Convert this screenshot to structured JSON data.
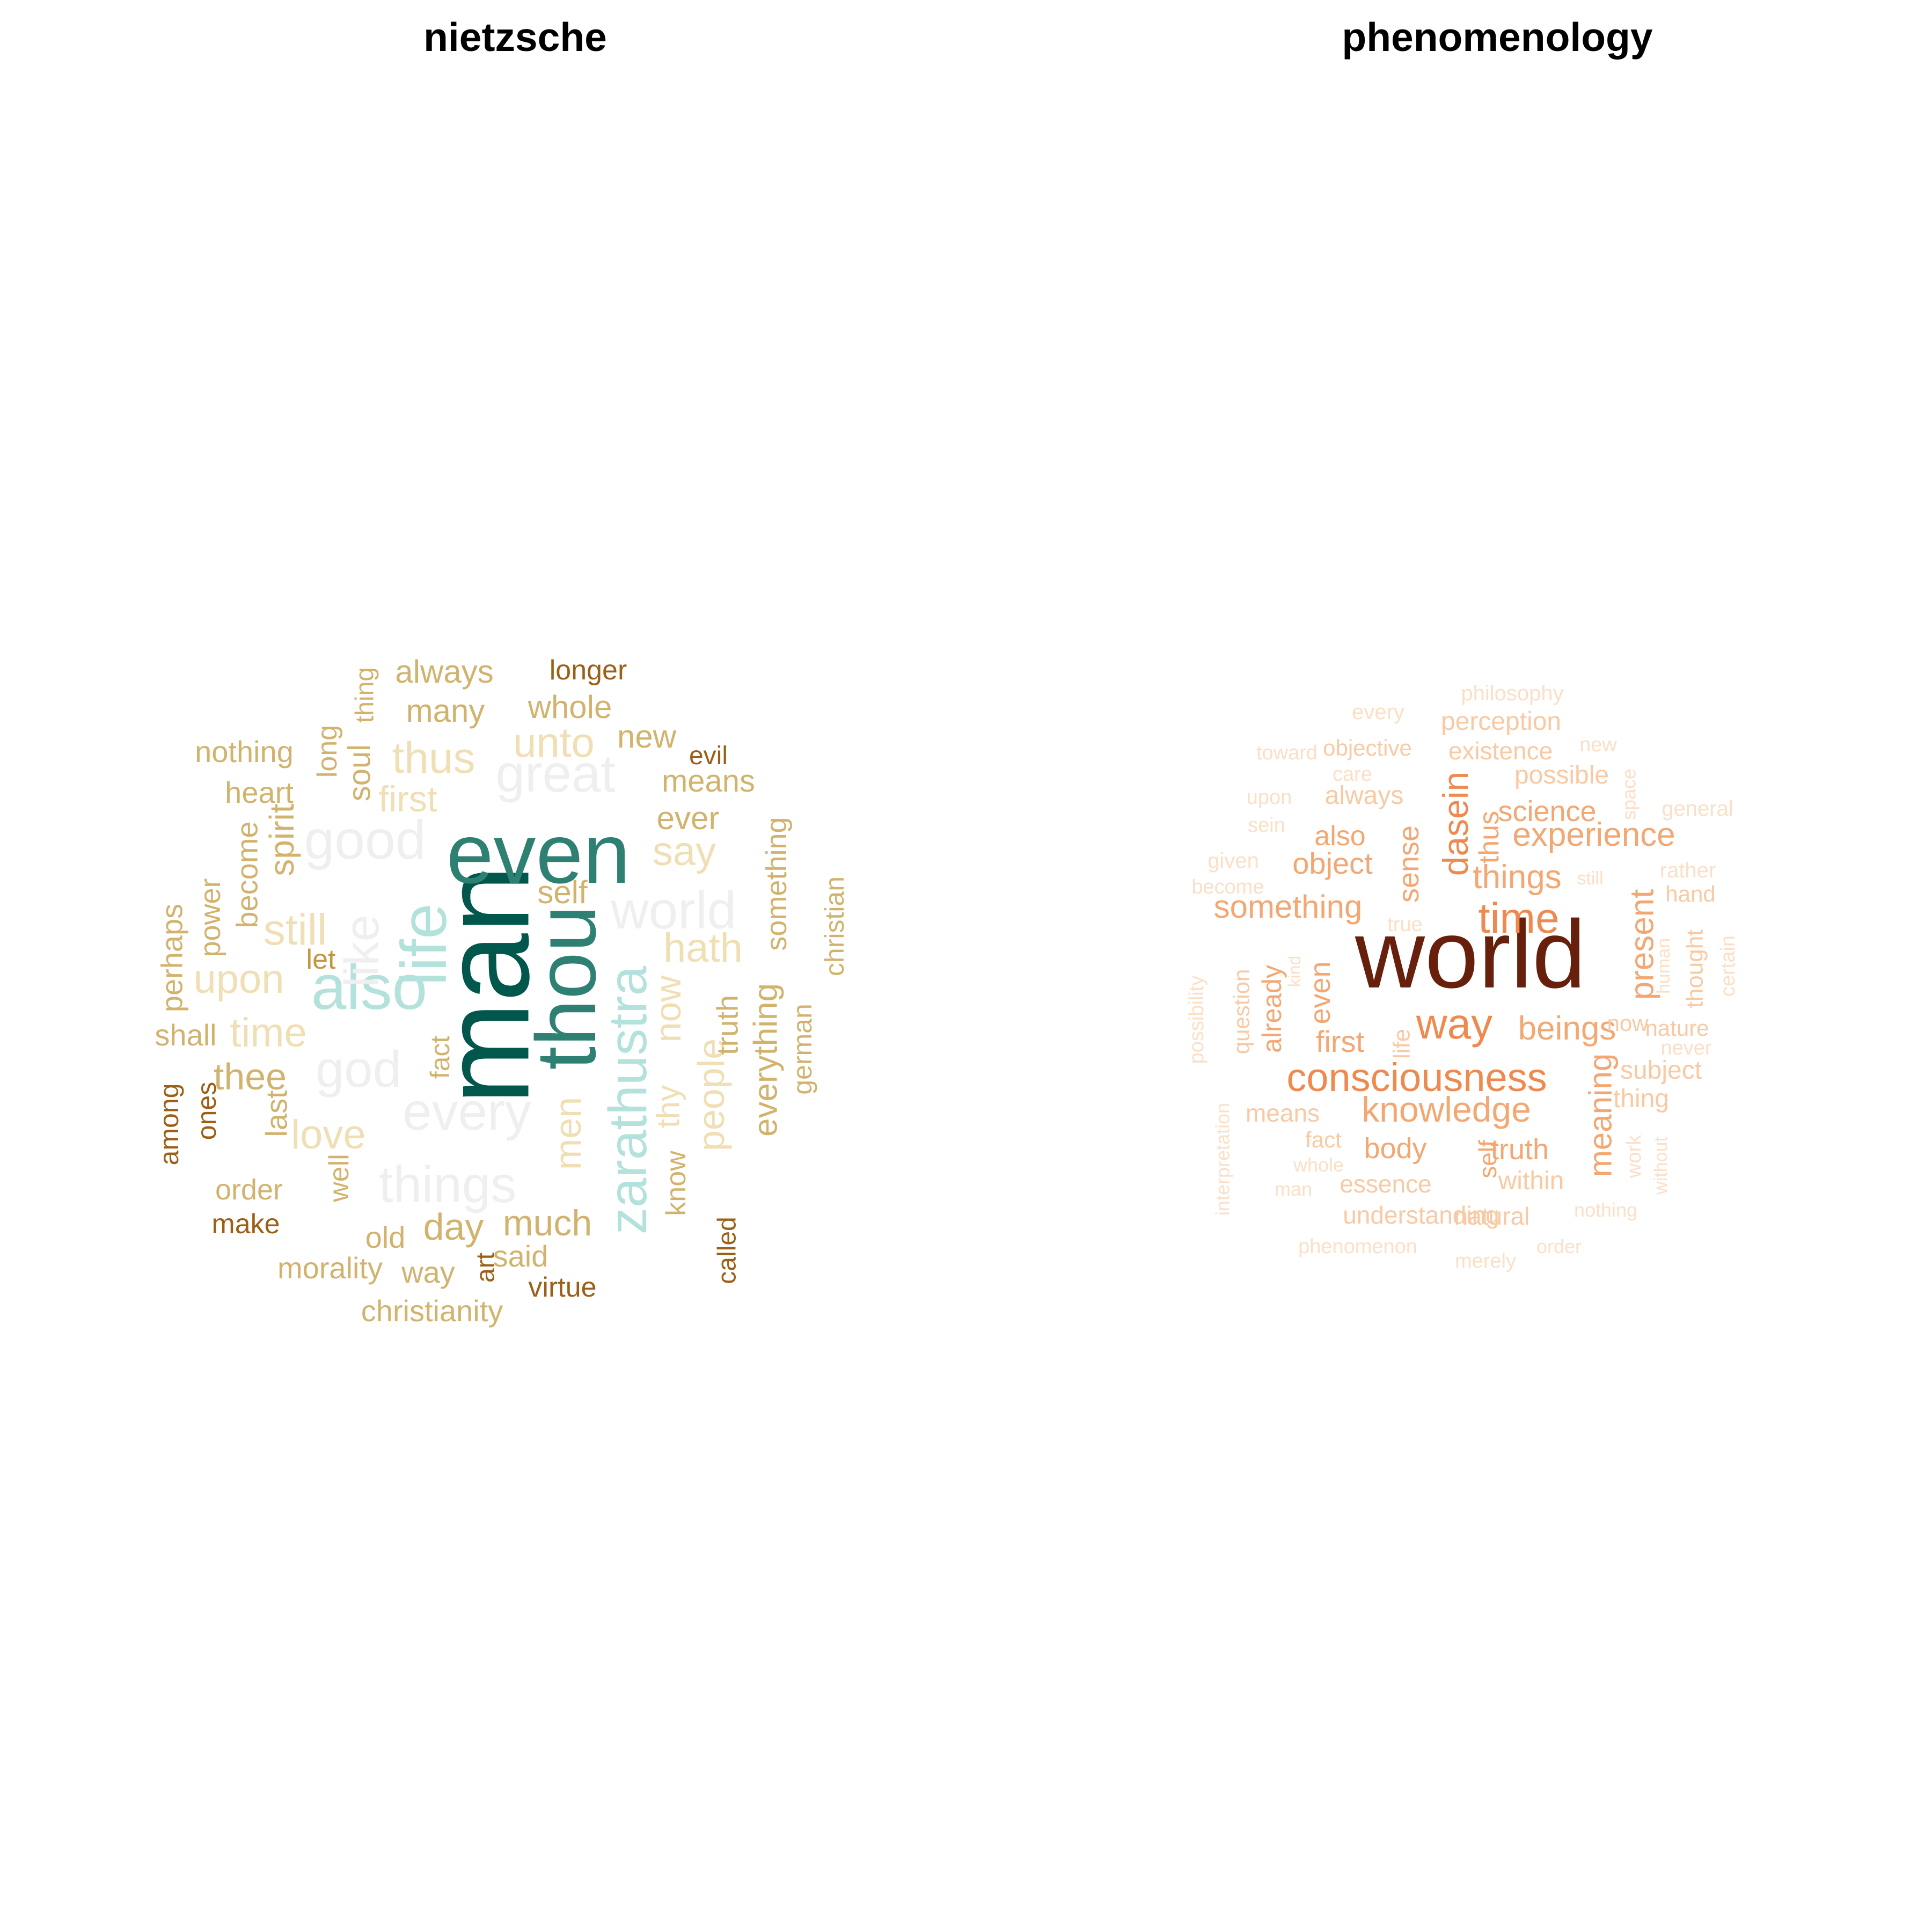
{
  "chart_data": [
    {
      "type": "wordcloud",
      "title": "nietzsche",
      "words": [
        {
          "text": "man",
          "color": "#01574C",
          "rotate": true
        },
        {
          "text": "even",
          "color": "#2E8072"
        },
        {
          "text": "thou",
          "color": "#2E8072",
          "rotate": true
        },
        {
          "text": "life",
          "color": "#B3E2DC",
          "rotate": true
        },
        {
          "text": "also",
          "color": "#B3E2DC"
        },
        {
          "text": "zarathustra",
          "color": "#B3E2DC",
          "rotate": true
        },
        {
          "text": "good",
          "color": "#EFEFEF"
        },
        {
          "text": "great",
          "color": "#EFEFEF"
        },
        {
          "text": "world",
          "color": "#EFEFEF"
        },
        {
          "text": "like",
          "color": "#EFEFEF",
          "rotate": true
        },
        {
          "text": "god",
          "color": "#EFEFEF"
        },
        {
          "text": "every",
          "color": "#EFEFEF"
        },
        {
          "text": "things",
          "color": "#EFEFEF"
        },
        {
          "text": "thus",
          "color": "#F0DFB4"
        },
        {
          "text": "unto",
          "color": "#F0DFB4"
        },
        {
          "text": "say",
          "color": "#F0DFB4"
        },
        {
          "text": "hath",
          "color": "#F0DFB4"
        },
        {
          "text": "still",
          "color": "#F0DFB4"
        },
        {
          "text": "upon",
          "color": "#F0DFB4"
        },
        {
          "text": "time",
          "color": "#F0DFB4"
        },
        {
          "text": "love",
          "color": "#F0DFB4"
        },
        {
          "text": "men",
          "color": "#F0DFB4",
          "rotate": true
        },
        {
          "text": "now",
          "color": "#F0DFB4",
          "rotate": true
        },
        {
          "text": "thy",
          "color": "#F0DFB4",
          "rotate": true
        },
        {
          "text": "people",
          "color": "#F0DFB4",
          "rotate": true
        },
        {
          "text": "first",
          "color": "#F0DFB4"
        },
        {
          "text": "always",
          "color": "#D2B36E"
        },
        {
          "text": "many",
          "color": "#D2B36E"
        },
        {
          "text": "whole",
          "color": "#D2B36E"
        },
        {
          "text": "new",
          "color": "#D2B36E"
        },
        {
          "text": "means",
          "color": "#D2B36E"
        },
        {
          "text": "ever",
          "color": "#D2B36E"
        },
        {
          "text": "nothing",
          "color": "#D2B36E"
        },
        {
          "text": "heart",
          "color": "#D2B36E"
        },
        {
          "text": "self",
          "color": "#D2B36E"
        },
        {
          "text": "thee",
          "color": "#D2B36E"
        },
        {
          "text": "shall",
          "color": "#D2B36E"
        },
        {
          "text": "day",
          "color": "#D2B36E"
        },
        {
          "text": "much",
          "color": "#D2B36E"
        },
        {
          "text": "old",
          "color": "#D2B36E"
        },
        {
          "text": "morality",
          "color": "#D2B36E"
        },
        {
          "text": "way",
          "color": "#D2B36E"
        },
        {
          "text": "said",
          "color": "#D2B36E"
        },
        {
          "text": "christianity",
          "color": "#D2B36E"
        },
        {
          "text": "order",
          "color": "#D2B36E"
        },
        {
          "text": "let",
          "color": "#C29740"
        },
        {
          "text": "thing",
          "color": "#D2B36E",
          "rotate": true
        },
        {
          "text": "long",
          "color": "#D2B36E",
          "rotate": true
        },
        {
          "text": "soul",
          "color": "#D2B36E",
          "rotate": true
        },
        {
          "text": "spirit",
          "color": "#D2B36E",
          "rotate": true
        },
        {
          "text": "become",
          "color": "#D2B36E",
          "rotate": true
        },
        {
          "text": "power",
          "color": "#D2B36E",
          "rotate": true
        },
        {
          "text": "perhaps",
          "color": "#D2B36E",
          "rotate": true
        },
        {
          "text": "fact",
          "color": "#D2B36E",
          "rotate": true
        },
        {
          "text": "last",
          "color": "#D2B36E",
          "rotate": true
        },
        {
          "text": "well",
          "color": "#D2B36E",
          "rotate": true
        },
        {
          "text": "know",
          "color": "#D2B36E",
          "rotate": true
        },
        {
          "text": "truth",
          "color": "#D2B36E",
          "rotate": true
        },
        {
          "text": "everything",
          "color": "#D2B36E",
          "rotate": true
        },
        {
          "text": "something",
          "color": "#D2B36E",
          "rotate": true
        },
        {
          "text": "german",
          "color": "#D2B36E",
          "rotate": true
        },
        {
          "text": "christian",
          "color": "#D2B36E",
          "rotate": true
        },
        {
          "text": "longer",
          "color": "#9C5F17"
        },
        {
          "text": "evil",
          "color": "#9C5F17"
        },
        {
          "text": "make",
          "color": "#9C5F17"
        },
        {
          "text": "virtue",
          "color": "#9C5F17"
        },
        {
          "text": "among",
          "color": "#9C5F17",
          "rotate": true
        },
        {
          "text": "ones",
          "color": "#9C5F17",
          "rotate": true
        },
        {
          "text": "art",
          "color": "#9C5F17",
          "rotate": true
        },
        {
          "text": "called",
          "color": "#9C5F17",
          "rotate": true
        }
      ]
    },
    {
      "type": "wordcloud",
      "title": "phenomenology",
      "words": [
        {
          "text": "world",
          "color": "#67200C"
        },
        {
          "text": "time",
          "color": "#EE8A50"
        },
        {
          "text": "way",
          "color": "#EE8A50"
        },
        {
          "text": "consciousness",
          "color": "#EE8A50"
        },
        {
          "text": "dasein",
          "color": "#EE8A50",
          "rotate": true
        },
        {
          "text": "present",
          "color": "#F3A772",
          "rotate": true
        },
        {
          "text": "experience",
          "color": "#F3A772"
        },
        {
          "text": "things",
          "color": "#F3A772"
        },
        {
          "text": "beings",
          "color": "#F3A772"
        },
        {
          "text": "knowledge",
          "color": "#F3A772"
        },
        {
          "text": "science",
          "color": "#F3A772"
        },
        {
          "text": "object",
          "color": "#F3A772"
        },
        {
          "text": "something",
          "color": "#F3A772"
        },
        {
          "text": "first",
          "color": "#F3A772"
        },
        {
          "text": "body",
          "color": "#F3A772"
        },
        {
          "text": "truth",
          "color": "#F3A772"
        },
        {
          "text": "also",
          "color": "#F3A772"
        },
        {
          "text": "sense",
          "color": "#F3A772",
          "rotate": true
        },
        {
          "text": "thus",
          "color": "#F3A772",
          "rotate": true
        },
        {
          "text": "even",
          "color": "#F3A772",
          "rotate": true
        },
        {
          "text": "self",
          "color": "#F3A772",
          "rotate": true
        },
        {
          "text": "meaning",
          "color": "#F3A772",
          "rotate": true
        },
        {
          "text": "already",
          "color": "#F3A772",
          "rotate": true
        },
        {
          "text": "perception",
          "color": "#F8CAA4"
        },
        {
          "text": "existence",
          "color": "#F8CAA4"
        },
        {
          "text": "possible",
          "color": "#F8CAA4"
        },
        {
          "text": "always",
          "color": "#F8CAA4"
        },
        {
          "text": "objective",
          "color": "#F8CAA4"
        },
        {
          "text": "subject",
          "color": "#F8CAA4"
        },
        {
          "text": "thing",
          "color": "#F8CAA4"
        },
        {
          "text": "within",
          "color": "#F8CAA4"
        },
        {
          "text": "essence",
          "color": "#F8CAA4"
        },
        {
          "text": "understanding",
          "color": "#F8CAA4"
        },
        {
          "text": "natural",
          "color": "#F8CAA4"
        },
        {
          "text": "means",
          "color": "#F8CAA4"
        },
        {
          "text": "fact",
          "color": "#F8CAA4"
        },
        {
          "text": "now",
          "color": "#F8CAA4"
        },
        {
          "text": "nature",
          "color": "#F8CAA4"
        },
        {
          "text": "hand",
          "color": "#F8CAA4"
        },
        {
          "text": "life",
          "color": "#F8CAA4",
          "rotate": true
        },
        {
          "text": "question",
          "color": "#F8CAA4",
          "rotate": true
        },
        {
          "text": "thought",
          "color": "#F8CAA4",
          "rotate": true
        },
        {
          "text": "philosophy",
          "color": "#FBDFC6"
        },
        {
          "text": "every",
          "color": "#FBDFC6"
        },
        {
          "text": "toward",
          "color": "#FBDFC6"
        },
        {
          "text": "care",
          "color": "#FBDFC6"
        },
        {
          "text": "new",
          "color": "#FBDFC6"
        },
        {
          "text": "upon",
          "color": "#FBDFC6"
        },
        {
          "text": "sein",
          "color": "#FBDFC6"
        },
        {
          "text": "general",
          "color": "#FBDFC6"
        },
        {
          "text": "given",
          "color": "#FBDFC6"
        },
        {
          "text": "become",
          "color": "#FBDFC6"
        },
        {
          "text": "still",
          "color": "#FBDFC6"
        },
        {
          "text": "rather",
          "color": "#FBDFC6"
        },
        {
          "text": "true",
          "color": "#FBDFC6"
        },
        {
          "text": "never",
          "color": "#FBDFC6"
        },
        {
          "text": "whole",
          "color": "#FBDFC6"
        },
        {
          "text": "man",
          "color": "#FBDFC6"
        },
        {
          "text": "nothing",
          "color": "#FBDFC6"
        },
        {
          "text": "phenomenon",
          "color": "#FBDFC6"
        },
        {
          "text": "order",
          "color": "#FBDFC6"
        },
        {
          "text": "merely",
          "color": "#FBDFC6"
        },
        {
          "text": "space",
          "color": "#FBDFC6",
          "rotate": true
        },
        {
          "text": "human",
          "color": "#FBDFC6",
          "rotate": true
        },
        {
          "text": "certain",
          "color": "#FBDFC6",
          "rotate": true
        },
        {
          "text": "possibility",
          "color": "#FBDFC6",
          "rotate": true
        },
        {
          "text": "kind",
          "color": "#FBDFC6",
          "rotate": true
        },
        {
          "text": "interpretation",
          "color": "#FBDFC6",
          "rotate": true
        },
        {
          "text": "work",
          "color": "#FBDFC6",
          "rotate": true
        },
        {
          "text": "without",
          "color": "#FBDFC6",
          "rotate": true
        }
      ]
    }
  ]
}
